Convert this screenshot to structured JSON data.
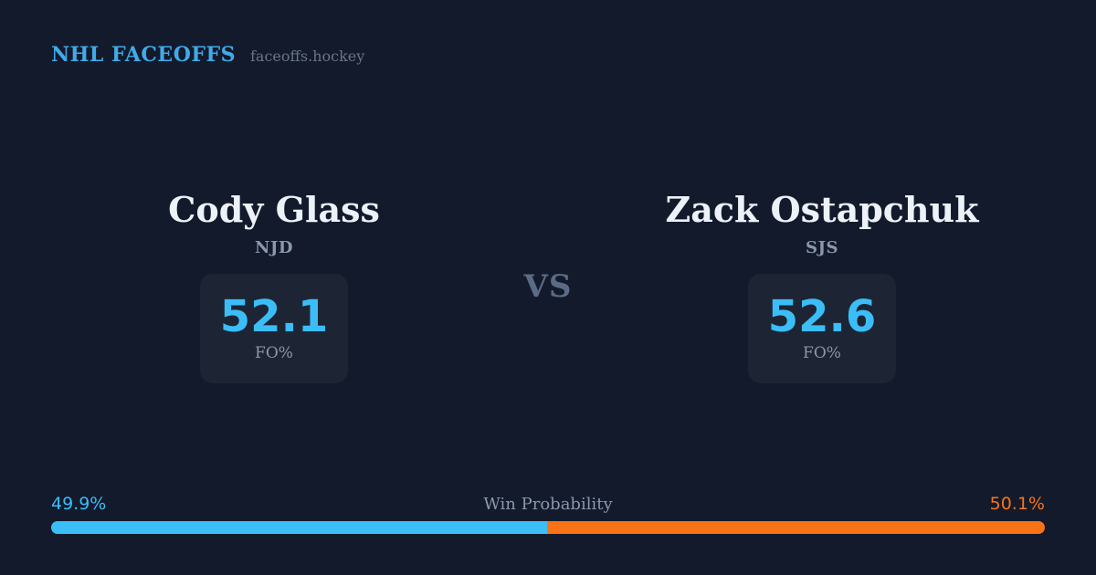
{
  "header": {
    "brand": "NHL FACEOFFS",
    "site": "faceoffs.hockey"
  },
  "matchup": {
    "vs_label": "VS",
    "players": [
      {
        "name": "Cody Glass",
        "team": "NJD",
        "stat_value": "52.1",
        "stat_label": "FO%"
      },
      {
        "name": "Zack Ostapchuk",
        "team": "SJS",
        "stat_value": "52.6",
        "stat_label": "FO%"
      }
    ]
  },
  "win_probability": {
    "label": "Win Probability",
    "left_pct": "49.9%",
    "right_pct": "50.1%",
    "left_value": 49.9,
    "right_value": 50.1
  },
  "chart_data": {
    "type": "bar",
    "title": "Win Probability",
    "layout": "horizontal-stacked",
    "categories": [
      "Cody Glass (NJD)",
      "Zack Ostapchuk (SJS)"
    ],
    "values": [
      49.9,
      50.1
    ],
    "unit": "%",
    "value_labels": [
      "49.9%",
      "50.1%"
    ],
    "colors": [
      "#3bbef8",
      "#f97316"
    ],
    "related_stats": {
      "stat_name": "FO%",
      "values": [
        52.1,
        52.6
      ]
    }
  },
  "colors": {
    "background": "#121a2c",
    "card_bg": "#1d2534",
    "brand_blue": "#41aae8",
    "accent_blue": "#3bbef8",
    "accent_orange": "#f97316",
    "text_primary": "#edf2f9",
    "text_muted": "#8b97ab",
    "text_subtle": "#6a7585",
    "vs_color": "#5c6b85"
  }
}
